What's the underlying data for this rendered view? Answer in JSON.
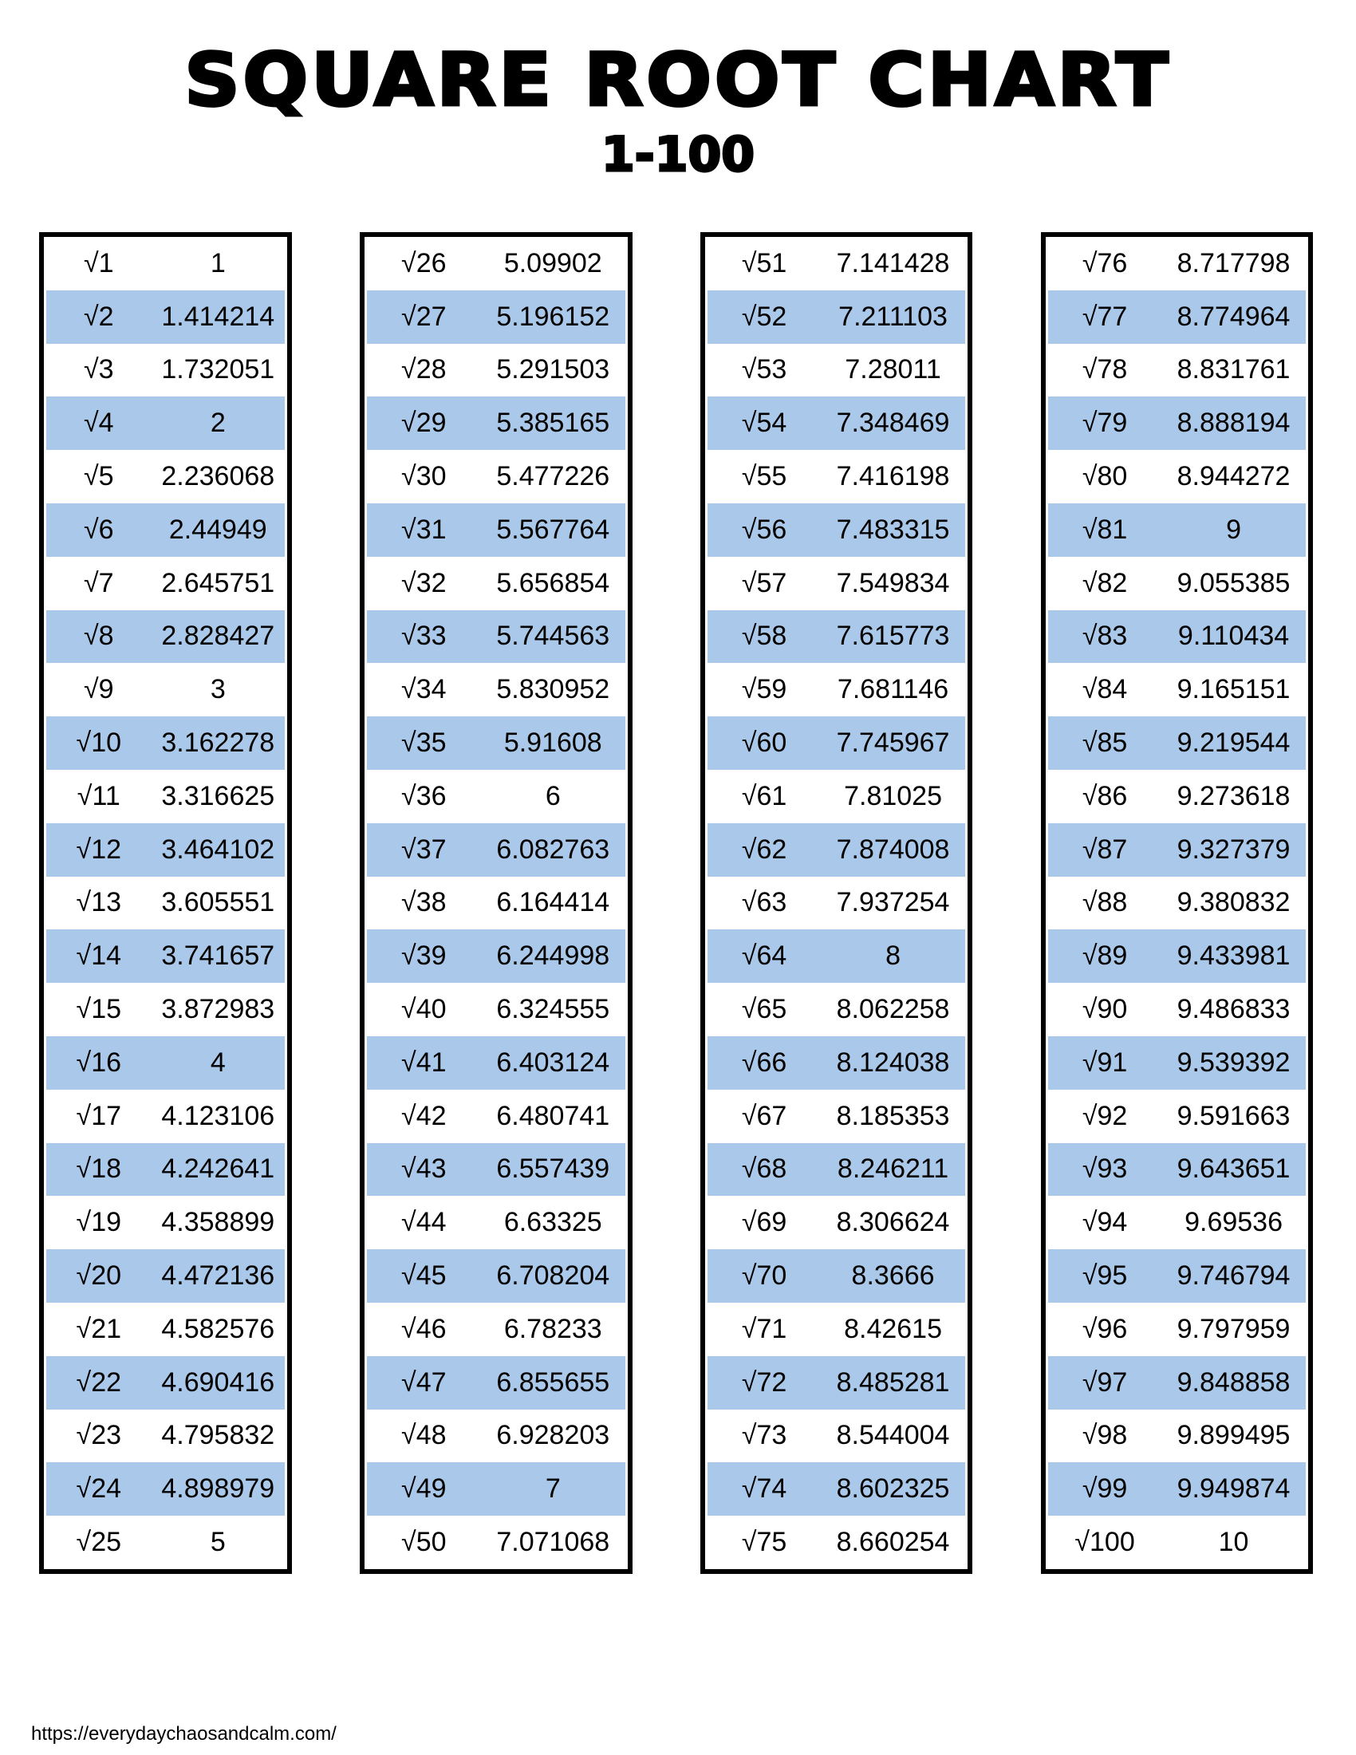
{
  "header": {
    "title": "SQUARE ROOT CHART",
    "subtitle": "1-100"
  },
  "colors": {
    "stripe": "#a9c8ea",
    "border": "#000000"
  },
  "tables": [
    {
      "rows": [
        {
          "label": "√1",
          "value": "1"
        },
        {
          "label": "√2",
          "value": "1.414214"
        },
        {
          "label": "√3",
          "value": "1.732051"
        },
        {
          "label": "√4",
          "value": "2"
        },
        {
          "label": "√5",
          "value": "2.236068"
        },
        {
          "label": "√6",
          "value": "2.44949"
        },
        {
          "label": "√7",
          "value": "2.645751"
        },
        {
          "label": "√8",
          "value": "2.828427"
        },
        {
          "label": "√9",
          "value": "3"
        },
        {
          "label": "√10",
          "value": "3.162278"
        },
        {
          "label": "√11",
          "value": "3.316625"
        },
        {
          "label": "√12",
          "value": "3.464102"
        },
        {
          "label": "√13",
          "value": "3.605551"
        },
        {
          "label": "√14",
          "value": "3.741657"
        },
        {
          "label": "√15",
          "value": "3.872983"
        },
        {
          "label": "√16",
          "value": "4"
        },
        {
          "label": "√17",
          "value": "4.123106"
        },
        {
          "label": "√18",
          "value": "4.242641"
        },
        {
          "label": "√19",
          "value": "4.358899"
        },
        {
          "label": "√20",
          "value": "4.472136"
        },
        {
          "label": "√21",
          "value": "4.582576"
        },
        {
          "label": "√22",
          "value": "4.690416"
        },
        {
          "label": "√23",
          "value": "4.795832"
        },
        {
          "label": "√24",
          "value": "4.898979"
        },
        {
          "label": "√25",
          "value": "5"
        }
      ]
    },
    {
      "rows": [
        {
          "label": "√26",
          "value": "5.09902"
        },
        {
          "label": "√27",
          "value": "5.196152"
        },
        {
          "label": "√28",
          "value": "5.291503"
        },
        {
          "label": "√29",
          "value": "5.385165"
        },
        {
          "label": "√30",
          "value": "5.477226"
        },
        {
          "label": "√31",
          "value": "5.567764"
        },
        {
          "label": "√32",
          "value": "5.656854"
        },
        {
          "label": "√33",
          "value": "5.744563"
        },
        {
          "label": "√34",
          "value": "5.830952"
        },
        {
          "label": "√35",
          "value": "5.91608"
        },
        {
          "label": "√36",
          "value": "6"
        },
        {
          "label": "√37",
          "value": "6.082763"
        },
        {
          "label": "√38",
          "value": "6.164414"
        },
        {
          "label": "√39",
          "value": "6.244998"
        },
        {
          "label": "√40",
          "value": "6.324555"
        },
        {
          "label": "√41",
          "value": "6.403124"
        },
        {
          "label": "√42",
          "value": "6.480741"
        },
        {
          "label": "√43",
          "value": "6.557439"
        },
        {
          "label": "√44",
          "value": "6.63325"
        },
        {
          "label": "√45",
          "value": "6.708204"
        },
        {
          "label": "√46",
          "value": "6.78233"
        },
        {
          "label": "√47",
          "value": "6.855655"
        },
        {
          "label": "√48",
          "value": "6.928203"
        },
        {
          "label": "√49",
          "value": "7"
        },
        {
          "label": "√50",
          "value": "7.071068"
        }
      ]
    },
    {
      "rows": [
        {
          "label": "√51",
          "value": "7.141428"
        },
        {
          "label": "√52",
          "value": "7.211103"
        },
        {
          "label": "√53",
          "value": "7.28011"
        },
        {
          "label": "√54",
          "value": "7.348469"
        },
        {
          "label": "√55",
          "value": "7.416198"
        },
        {
          "label": "√56",
          "value": "7.483315"
        },
        {
          "label": "√57",
          "value": "7.549834"
        },
        {
          "label": "√58",
          "value": "7.615773"
        },
        {
          "label": "√59",
          "value": "7.681146"
        },
        {
          "label": "√60",
          "value": "7.745967"
        },
        {
          "label": "√61",
          "value": "7.81025"
        },
        {
          "label": "√62",
          "value": "7.874008"
        },
        {
          "label": "√63",
          "value": "7.937254"
        },
        {
          "label": "√64",
          "value": "8"
        },
        {
          "label": "√65",
          "value": "8.062258"
        },
        {
          "label": "√66",
          "value": "8.124038"
        },
        {
          "label": "√67",
          "value": "8.185353"
        },
        {
          "label": "√68",
          "value": "8.246211"
        },
        {
          "label": "√69",
          "value": "8.306624"
        },
        {
          "label": "√70",
          "value": "8.3666"
        },
        {
          "label": "√71",
          "value": "8.42615"
        },
        {
          "label": "√72",
          "value": "8.485281"
        },
        {
          "label": "√73",
          "value": "8.544004"
        },
        {
          "label": "√74",
          "value": "8.602325"
        },
        {
          "label": "√75",
          "value": "8.660254"
        }
      ]
    },
    {
      "rows": [
        {
          "label": "√76",
          "value": "8.717798"
        },
        {
          "label": "√77",
          "value": "8.774964"
        },
        {
          "label": "√78",
          "value": "8.831761"
        },
        {
          "label": "√79",
          "value": "8.888194"
        },
        {
          "label": "√80",
          "value": "8.944272"
        },
        {
          "label": "√81",
          "value": "9"
        },
        {
          "label": "√82",
          "value": "9.055385"
        },
        {
          "label": "√83",
          "value": "9.110434"
        },
        {
          "label": "√84",
          "value": "9.165151"
        },
        {
          "label": "√85",
          "value": "9.219544"
        },
        {
          "label": "√86",
          "value": "9.273618"
        },
        {
          "label": "√87",
          "value": "9.327379"
        },
        {
          "label": "√88",
          "value": "9.380832"
        },
        {
          "label": "√89",
          "value": "9.433981"
        },
        {
          "label": "√90",
          "value": "9.486833"
        },
        {
          "label": "√91",
          "value": "9.539392"
        },
        {
          "label": "√92",
          "value": "9.591663"
        },
        {
          "label": "√93",
          "value": "9.643651"
        },
        {
          "label": "√94",
          "value": "9.69536"
        },
        {
          "label": "√95",
          "value": "9.746794"
        },
        {
          "label": "√96",
          "value": "9.797959"
        },
        {
          "label": "√97",
          "value": "9.848858"
        },
        {
          "label": "√98",
          "value": "9.899495"
        },
        {
          "label": "√99",
          "value": "9.949874"
        },
        {
          "label": "√100",
          "value": "10"
        }
      ]
    }
  ],
  "footer": {
    "url": "https://everydaychaosandcalm.com/"
  }
}
